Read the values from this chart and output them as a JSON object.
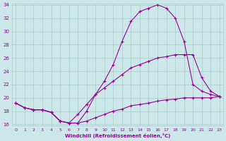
{
  "xlabel": "Windchill (Refroidissement éolien,°C)",
  "bg_color": "#cce8e8",
  "grid_color": "#aacccc",
  "line_color": "#990099",
  "x_min": 0,
  "x_max": 23,
  "y_min": 16,
  "y_max": 34,
  "series": [
    {
      "x": [
        0,
        1,
        2,
        3,
        4,
        5,
        6,
        7,
        8,
        9,
        10,
        11,
        12,
        13,
        14,
        15,
        16,
        17,
        18,
        19,
        20,
        21,
        22,
        23
      ],
      "y": [
        19.2,
        18.5,
        18.2,
        18.2,
        17.8,
        16.5,
        16.2,
        16.2,
        18.0,
        20.5,
        22.5,
        25.0,
        28.5,
        31.5,
        33.0,
        33.5,
        34.0,
        33.5,
        32.0,
        28.5,
        22.0,
        21.0,
        20.5,
        20.2
      ]
    },
    {
      "x": [
        0,
        1,
        2,
        3,
        4,
        5,
        6,
        7,
        8,
        9,
        10,
        11,
        12,
        13,
        14,
        15,
        16,
        17,
        18,
        19,
        20,
        21,
        22,
        23
      ],
      "y": [
        19.2,
        18.5,
        18.2,
        18.2,
        17.8,
        16.5,
        16.2,
        17.5,
        19.0,
        20.5,
        21.5,
        22.5,
        23.5,
        24.5,
        25.0,
        25.5,
        26.0,
        26.2,
        26.5,
        26.5,
        26.5,
        23.0,
        21.0,
        20.2
      ]
    },
    {
      "x": [
        0,
        1,
        2,
        3,
        4,
        5,
        6,
        7,
        8,
        9,
        10,
        11,
        12,
        13,
        14,
        15,
        16,
        17,
        18,
        19,
        20,
        21,
        22,
        23
      ],
      "y": [
        19.2,
        18.5,
        18.2,
        18.2,
        17.8,
        16.5,
        16.2,
        16.2,
        16.5,
        17.0,
        17.5,
        18.0,
        18.3,
        18.8,
        19.0,
        19.2,
        19.5,
        19.7,
        19.8,
        20.0,
        20.0,
        20.0,
        20.0,
        20.2
      ]
    }
  ],
  "yticks": [
    16,
    18,
    20,
    22,
    24,
    26,
    28,
    30,
    32,
    34
  ],
  "xticks": [
    0,
    1,
    2,
    3,
    4,
    5,
    6,
    7,
    8,
    9,
    10,
    11,
    12,
    13,
    14,
    15,
    16,
    17,
    18,
    19,
    20,
    21,
    22,
    23
  ]
}
